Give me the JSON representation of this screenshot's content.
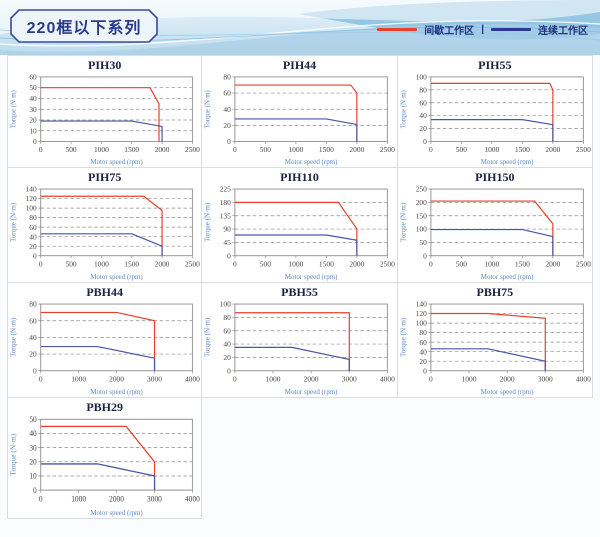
{
  "header": {
    "title": "220框以下系列",
    "legend": [
      {
        "label": "间歇工作区",
        "color": "#e8402a"
      },
      {
        "label": "连续工作区",
        "color": "#2b3990"
      }
    ],
    "legend_separator": "|"
  },
  "chart_data": [
    {
      "type": "line",
      "title": "PIH30",
      "xlabel": "Motor speed (rpm)",
      "ylabel": "Torque (N·m)",
      "xlim": [
        0,
        2500
      ],
      "xstep": 500,
      "ylim": [
        0,
        60
      ],
      "ystep": 10,
      "grid": "horizontal-dashed",
      "legend_position": "none",
      "series": [
        {
          "name": "间歇工作区",
          "color": "#e8402a",
          "points": [
            [
              0,
              50
            ],
            [
              1800,
              50
            ],
            [
              1950,
              35
            ],
            [
              1950,
              0
            ]
          ]
        },
        {
          "name": "连续工作区",
          "color": "#4a57a5",
          "points": [
            [
              0,
              19
            ],
            [
              1500,
              19
            ],
            [
              2000,
              14
            ],
            [
              2000,
              0
            ]
          ]
        }
      ]
    },
    {
      "type": "line",
      "title": "PIH44",
      "xlabel": "Motor speed (rpm)",
      "ylabel": "Torque (N·m)",
      "xlim": [
        0,
        2500
      ],
      "xstep": 500,
      "ylim": [
        0,
        80
      ],
      "ystep": 20,
      "grid": "horizontal-dashed",
      "legend_position": "none",
      "series": [
        {
          "name": "间歇工作区",
          "color": "#e8402a",
          "points": [
            [
              0,
              70
            ],
            [
              1900,
              70
            ],
            [
              2000,
              60
            ],
            [
              2000,
              0
            ]
          ]
        },
        {
          "name": "连续工作区",
          "color": "#4a57a5",
          "points": [
            [
              0,
              28
            ],
            [
              1500,
              28
            ],
            [
              2000,
              21
            ],
            [
              2000,
              0
            ]
          ]
        }
      ]
    },
    {
      "type": "line",
      "title": "PIH55",
      "xlabel": "Motor speed (rpm)",
      "ylabel": "Torque (N·m)",
      "xlim": [
        0,
        2500
      ],
      "xstep": 500,
      "ylim": [
        0,
        100
      ],
      "ystep": 20,
      "grid": "horizontal-dashed",
      "legend_position": "none",
      "series": [
        {
          "name": "间歇工作区",
          "color": "#e8402a",
          "points": [
            [
              0,
              90
            ],
            [
              1950,
              90
            ],
            [
              2000,
              80
            ],
            [
              2000,
              0
            ]
          ]
        },
        {
          "name": "连续工作区",
          "color": "#4a57a5",
          "points": [
            [
              0,
              34
            ],
            [
              1500,
              34
            ],
            [
              2000,
              26
            ],
            [
              2000,
              0
            ]
          ]
        }
      ]
    },
    {
      "type": "line",
      "title": "PIH75",
      "xlabel": "Motor speed (rpm)",
      "ylabel": "Torque (N·m)",
      "xlim": [
        0,
        2500
      ],
      "xstep": 500,
      "ylim": [
        0,
        140
      ],
      "ystep": 20,
      "grid": "horizontal-dashed",
      "legend_position": "none",
      "series": [
        {
          "name": "间歇工作区",
          "color": "#e8402a",
          "points": [
            [
              0,
              125
            ],
            [
              1700,
              125
            ],
            [
              2000,
              95
            ],
            [
              2000,
              0
            ]
          ]
        },
        {
          "name": "连续工作区",
          "color": "#4a57a5",
          "points": [
            [
              0,
              46
            ],
            [
              1500,
              46
            ],
            [
              2000,
              20
            ],
            [
              2000,
              0
            ]
          ]
        }
      ]
    },
    {
      "type": "line",
      "title": "PIH110",
      "xlabel": "Motor speed (rpm)",
      "ylabel": "Torque (N·m)",
      "xlim": [
        0,
        2500
      ],
      "xstep": 500,
      "ylim": [
        0,
        225
      ],
      "ystep": 45,
      "grid": "horizontal-dashed",
      "legend_position": "none",
      "series": [
        {
          "name": "间歇工作区",
          "color": "#e8402a",
          "points": [
            [
              0,
              180
            ],
            [
              1700,
              180
            ],
            [
              2000,
              90
            ],
            [
              2000,
              0
            ]
          ]
        },
        {
          "name": "连续工作区",
          "color": "#4a57a5",
          "points": [
            [
              0,
              70
            ],
            [
              1500,
              70
            ],
            [
              2000,
              52
            ],
            [
              2000,
              0
            ]
          ]
        }
      ]
    },
    {
      "type": "line",
      "title": "PIH150",
      "xlabel": "Motor speed (rpm)",
      "ylabel": "Torque (N·m)",
      "xlim": [
        0,
        2500
      ],
      "xstep": 500,
      "ylim": [
        0,
        250
      ],
      "ystep": 50,
      "grid": "horizontal-dashed",
      "legend_position": "none",
      "series": [
        {
          "name": "间歇工作区",
          "color": "#e8402a",
          "points": [
            [
              0,
              205
            ],
            [
              1700,
              205
            ],
            [
              2000,
              120
            ],
            [
              2000,
              0
            ]
          ]
        },
        {
          "name": "连续工作区",
          "color": "#4a57a5",
          "points": [
            [
              0,
              98
            ],
            [
              1500,
              98
            ],
            [
              2000,
              72
            ],
            [
              2000,
              0
            ]
          ]
        }
      ]
    },
    {
      "type": "line",
      "title": "PBH44",
      "xlabel": "Motor speed (rpm)",
      "ylabel": "Torque (N·m)",
      "xlim": [
        0,
        4000
      ],
      "xstep": 1000,
      "ylim": [
        0,
        80
      ],
      "ystep": 20,
      "grid": "horizontal-dashed",
      "legend_position": "none",
      "series": [
        {
          "name": "间歇工作区",
          "color": "#e8402a",
          "points": [
            [
              0,
              70
            ],
            [
              2000,
              70
            ],
            [
              3000,
              60
            ],
            [
              3000,
              0
            ]
          ]
        },
        {
          "name": "连续工作区",
          "color": "#4a57a5",
          "points": [
            [
              0,
              29
            ],
            [
              1500,
              29
            ],
            [
              3000,
              15
            ],
            [
              3000,
              0
            ]
          ]
        }
      ]
    },
    {
      "type": "line",
      "title": "PBH55",
      "xlabel": "Motor speed (rpm)",
      "ylabel": "Torque (N·m)",
      "xlim": [
        0,
        4000
      ],
      "xstep": 1000,
      "ylim": [
        0,
        100
      ],
      "ystep": 20,
      "grid": "horizontal-dashed",
      "legend_position": "none",
      "series": [
        {
          "name": "间歇工作区",
          "color": "#e8402a",
          "points": [
            [
              0,
              87
            ],
            [
              3000,
              87
            ],
            [
              3000,
              0
            ]
          ]
        },
        {
          "name": "连续工作区",
          "color": "#4a57a5",
          "points": [
            [
              0,
              35
            ],
            [
              1500,
              35
            ],
            [
              3000,
              17
            ],
            [
              3000,
              0
            ]
          ]
        }
      ]
    },
    {
      "type": "line",
      "title": "PBH75",
      "xlabel": "Motor speed (rpm)",
      "ylabel": "Torque (N·m)",
      "xlim": [
        0,
        4000
      ],
      "xstep": 1000,
      "ylim": [
        0,
        140
      ],
      "ystep": 20,
      "grid": "horizontal-dashed",
      "legend_position": "none",
      "series": [
        {
          "name": "间歇工作区",
          "color": "#e8402a",
          "points": [
            [
              0,
              120
            ],
            [
              1500,
              120
            ],
            [
              3000,
              110
            ],
            [
              3000,
              0
            ]
          ]
        },
        {
          "name": "连续工作区",
          "color": "#4a57a5",
          "points": [
            [
              0,
              46
            ],
            [
              1500,
              46
            ],
            [
              3000,
              20
            ],
            [
              3000,
              0
            ]
          ]
        }
      ]
    },
    {
      "type": "line",
      "title": "PBH29",
      "xlabel": "Motor speed (rpm)",
      "ylabel": "Torque (N·m)",
      "xlim": [
        0,
        4000
      ],
      "xstep": 1000,
      "ylim": [
        0,
        50
      ],
      "ystep": 10,
      "grid": "horizontal-dashed",
      "legend_position": "none",
      "series": [
        {
          "name": "间歇工作区",
          "color": "#e8402a",
          "points": [
            [
              0,
              45
            ],
            [
              2250,
              45
            ],
            [
              3000,
              20
            ],
            [
              3000,
              0
            ]
          ]
        },
        {
          "name": "连续工作区",
          "color": "#4a57a5",
          "points": [
            [
              0,
              18.5
            ],
            [
              1500,
              18.5
            ],
            [
              3000,
              10
            ],
            [
              3000,
              0
            ]
          ]
        }
      ]
    }
  ]
}
